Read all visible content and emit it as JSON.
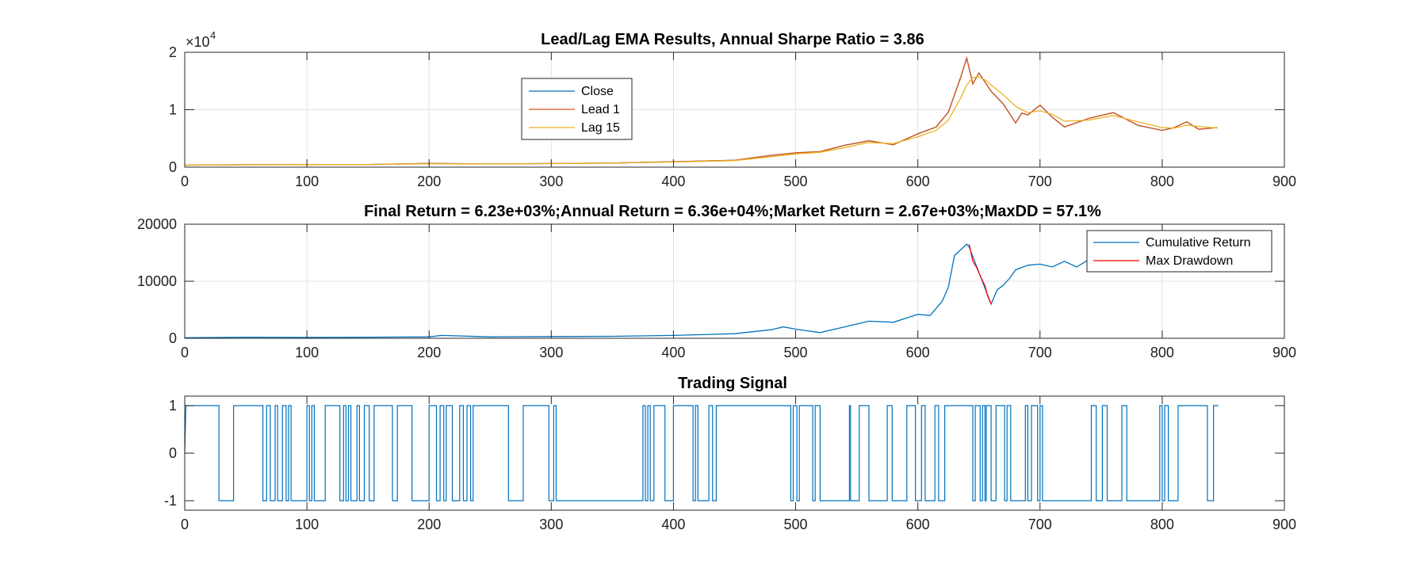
{
  "chart_data": [
    {
      "type": "line",
      "title": "Lead/Lag EMA Results, Annual Sharpe Ratio = 3.86",
      "xlim": [
        0,
        900
      ],
      "ylim": [
        0,
        20000
      ],
      "xticks": [
        "0",
        "100",
        "200",
        "300",
        "400",
        "500",
        "600",
        "700",
        "800",
        "900"
      ],
      "yticks": [
        "0",
        "1",
        "2"
      ],
      "y_exponent_base": "×10",
      "y_exponent_power": "4",
      "grid": true,
      "legend_location": "upper-left-center",
      "legend": [
        "Close",
        "Lead 1",
        "Lag 15"
      ],
      "colors": {
        "close": "#0072BD",
        "lead": "#D95319",
        "lag": "#EDB120"
      },
      "x": [
        0,
        50,
        100,
        150,
        200,
        250,
        300,
        350,
        400,
        450,
        480,
        500,
        520,
        540,
        560,
        580,
        600,
        615,
        625,
        635,
        640,
        645,
        650,
        655,
        660,
        670,
        680,
        685,
        690,
        700,
        710,
        720,
        740,
        760,
        780,
        800,
        810,
        820,
        830,
        845
      ],
      "series": [
        {
          "name": "Close",
          "values": [
            350,
            430,
            450,
            470,
            650,
            560,
            640,
            720,
            950,
            1200,
            2050,
            2500,
            2700,
            3800,
            4600,
            3900,
            5800,
            7000,
            9600,
            15600,
            19000,
            14500,
            16400,
            14800,
            13200,
            11000,
            7700,
            9400,
            9100,
            10800,
            8700,
            7000,
            8500,
            9500,
            7300,
            6400,
            6900,
            7900,
            6600,
            6900
          ]
        },
        {
          "name": "Lead 1",
          "values": [
            350,
            430,
            450,
            470,
            650,
            560,
            640,
            720,
            950,
            1200,
            2050,
            2500,
            2700,
            3800,
            4600,
            3900,
            5800,
            7000,
            9600,
            15600,
            19000,
            14500,
            16400,
            14800,
            13200,
            11000,
            7700,
            9400,
            9100,
            10800,
            8700,
            7000,
            8500,
            9500,
            7300,
            6400,
            6900,
            7900,
            6600,
            6900
          ]
        },
        {
          "name": "Lag 15",
          "values": [
            340,
            420,
            440,
            460,
            600,
            560,
            620,
            700,
            900,
            1150,
            1800,
            2300,
            2600,
            3400,
            4300,
            4100,
            5300,
            6400,
            8200,
            12000,
            14300,
            15600,
            15700,
            15200,
            14300,
            12600,
            10600,
            10000,
            9500,
            9800,
            9200,
            8000,
            8200,
            9000,
            7900,
            6900,
            6800,
            7300,
            7100,
            6800
          ]
        }
      ]
    },
    {
      "type": "line",
      "title": "Final Return = 6.23e+03%;Annual Return = 6.36e+04%;Market Return = 2.67e+03%;MaxDD = 57.1%",
      "xlim": [
        0,
        900
      ],
      "ylim": [
        0,
        20000
      ],
      "xticks": [
        "0",
        "100",
        "200",
        "300",
        "400",
        "500",
        "600",
        "700",
        "800",
        "900"
      ],
      "yticks": [
        "0",
        "10000",
        "20000"
      ],
      "grid": true,
      "legend_location": "top-right",
      "legend": [
        "Cumulative Return",
        "Max Drawdown"
      ],
      "colors": {
        "cum": "#0072BD",
        "dd": "#FF0000"
      },
      "series": [
        {
          "name": "Cumulative Return",
          "x": [
            0,
            50,
            100,
            150,
            200,
            210,
            250,
            300,
            350,
            400,
            450,
            480,
            490,
            500,
            520,
            540,
            560,
            580,
            600,
            610,
            620,
            625,
            630,
            635,
            640,
            642,
            660,
            665,
            670,
            675,
            680,
            690,
            700,
            710,
            720,
            730,
            740,
            750,
            760,
            780,
            800,
            820,
            845
          ],
          "values": [
            100,
            200,
            150,
            200,
            250,
            500,
            250,
            300,
            350,
            500,
            800,
            1500,
            2000,
            1600,
            1000,
            2000,
            3000,
            2800,
            4200,
            4000,
            6500,
            9000,
            14500,
            15500,
            16500,
            16000,
            6000,
            8500,
            9300,
            10500,
            12000,
            12800,
            13000,
            12500,
            13500,
            12500,
            13800,
            13500,
            13500,
            13000,
            13000,
            13200,
            13500
          ]
        },
        {
          "name": "Max Drawdown",
          "x": [
            642,
            645,
            648,
            650,
            652,
            655,
            657,
            660
          ],
          "values": [
            16500,
            13500,
            12500,
            11500,
            10500,
            9200,
            7500,
            6000
          ]
        }
      ]
    },
    {
      "type": "line",
      "title": "Trading Signal",
      "xlim": [
        0,
        900
      ],
      "ylim": [
        -1.2,
        1.2
      ],
      "xticks": [
        "0",
        "100",
        "200",
        "300",
        "400",
        "500",
        "600",
        "700",
        "800",
        "900"
      ],
      "yticks": [
        "-1",
        "0",
        "1"
      ],
      "grid": false,
      "colors": {
        "signal": "#0072BD"
      },
      "series": [
        {
          "name": "Signal",
          "segments": [
            [
              1,
              28,
              1
            ],
            [
              28,
              40,
              -1
            ],
            [
              40,
              64,
              1
            ],
            [
              64,
              67,
              -1
            ],
            [
              67,
              70,
              1
            ],
            [
              70,
              74,
              -1
            ],
            [
              74,
              76,
              1
            ],
            [
              76,
              80,
              -1
            ],
            [
              80,
              83,
              1
            ],
            [
              83,
              85,
              -1
            ],
            [
              85,
              87,
              1
            ],
            [
              87,
              100,
              -1
            ],
            [
              100,
              102,
              1
            ],
            [
              102,
              104,
              -1
            ],
            [
              104,
              106,
              1
            ],
            [
              106,
              115,
              -1
            ],
            [
              115,
              127,
              1
            ],
            [
              127,
              130,
              -1
            ],
            [
              130,
              132,
              1
            ],
            [
              132,
              134,
              -1
            ],
            [
              134,
              136,
              1
            ],
            [
              136,
              141,
              -1
            ],
            [
              141,
              143,
              1
            ],
            [
              143,
              147,
              -1
            ],
            [
              147,
              151,
              1
            ],
            [
              151,
              155,
              -1
            ],
            [
              155,
              170,
              1
            ],
            [
              170,
              174,
              -1
            ],
            [
              174,
              186,
              1
            ],
            [
              186,
              200,
              -1
            ],
            [
              200,
              206,
              1
            ],
            [
              206,
              209,
              -1
            ],
            [
              209,
              212,
              1
            ],
            [
              212,
              214,
              -1
            ],
            [
              214,
              219,
              1
            ],
            [
              219,
              225,
              -1
            ],
            [
              225,
              228,
              1
            ],
            [
              228,
              231,
              -1
            ],
            [
              231,
              234,
              1
            ],
            [
              234,
              236,
              -1
            ],
            [
              236,
              265,
              1
            ],
            [
              265,
              277,
              -1
            ],
            [
              277,
              298,
              1
            ],
            [
              298,
              302,
              -1
            ],
            [
              302,
              304,
              1
            ],
            [
              304,
              375,
              -1
            ],
            [
              375,
              377,
              1
            ],
            [
              377,
              379,
              -1
            ],
            [
              379,
              381,
              1
            ],
            [
              381,
              384,
              -1
            ],
            [
              384,
              393,
              1
            ],
            [
              393,
              400,
              -1
            ],
            [
              400,
              416,
              1
            ],
            [
              416,
              418,
              -1
            ],
            [
              418,
              420,
              1
            ],
            [
              420,
              429,
              -1
            ],
            [
              429,
              432,
              1
            ],
            [
              432,
              435,
              -1
            ],
            [
              435,
              496,
              1
            ],
            [
              496,
              498,
              -1
            ],
            [
              498,
              501,
              1
            ],
            [
              501,
              503,
              -1
            ],
            [
              503,
              514,
              1
            ],
            [
              514,
              516,
              -1
            ],
            [
              516,
              520,
              1
            ],
            [
              520,
              544,
              -1
            ],
            [
              544,
              545,
              1
            ],
            [
              545,
              552,
              -1
            ],
            [
              552,
              560,
              1
            ],
            [
              560,
              575,
              -1
            ],
            [
              575,
              579,
              1
            ],
            [
              579,
              591,
              -1
            ],
            [
              591,
              598,
              1
            ],
            [
              598,
              603,
              -1
            ],
            [
              603,
              606,
              1
            ],
            [
              606,
              614,
              -1
            ],
            [
              614,
              617,
              1
            ],
            [
              617,
              622,
              -1
            ],
            [
              622,
              645,
              1
            ],
            [
              645,
              647,
              -1
            ],
            [
              647,
              651,
              1
            ],
            [
              651,
              653,
              -1
            ],
            [
              653,
              655,
              1
            ],
            [
              655,
              656,
              -1
            ],
            [
              656,
              660,
              1
            ],
            [
              660,
              664,
              -1
            ],
            [
              664,
              671,
              1
            ],
            [
              671,
              673,
              -1
            ],
            [
              673,
              676,
              1
            ],
            [
              676,
              688,
              -1
            ],
            [
              688,
              690,
              1
            ],
            [
              690,
              693,
              -1
            ],
            [
              693,
              698,
              1
            ],
            [
              698,
              700,
              -1
            ],
            [
              700,
              702,
              1
            ],
            [
              702,
              742,
              -1
            ],
            [
              742,
              746,
              1
            ],
            [
              746,
              751,
              -1
            ],
            [
              751,
              755,
              1
            ],
            [
              755,
              767,
              -1
            ],
            [
              767,
              771,
              1
            ],
            [
              771,
              798,
              -1
            ],
            [
              798,
              800,
              1
            ],
            [
              800,
              802,
              -1
            ],
            [
              802,
              805,
              1
            ],
            [
              805,
              813,
              -1
            ],
            [
              813,
              837,
              1
            ],
            [
              837,
              842,
              -1
            ],
            [
              842,
              846,
              1
            ]
          ]
        }
      ]
    }
  ]
}
